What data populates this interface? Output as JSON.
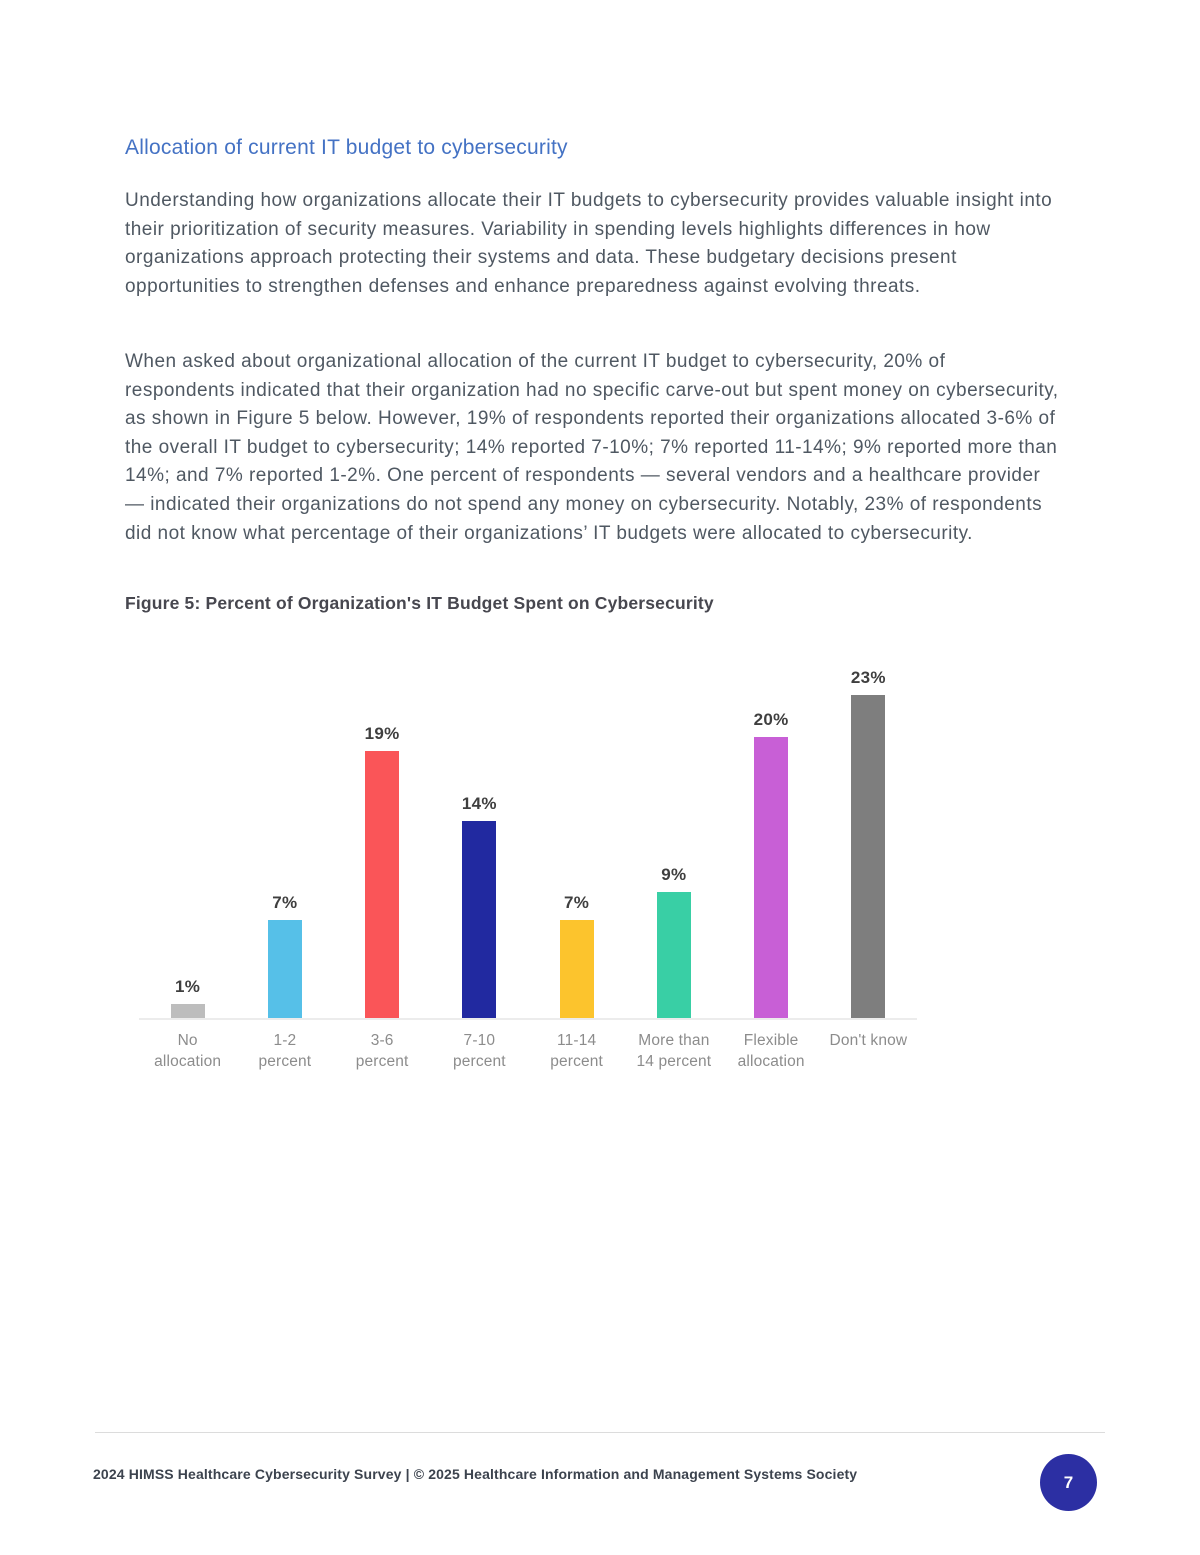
{
  "document": {
    "heading": "Allocation of current IT budget to cybersecurity",
    "paragraphs": [
      "Understanding how organizations allocate their IT budgets to cybersecurity provides valuable insight into their prioritization of security measures. Variability in spending levels highlights differences in how organizations approach protecting their systems and data. These budgetary decisions present opportunities to strengthen defenses and enhance preparedness against evolving threats.",
      "When asked about organizational allocation of the current IT budget to cybersecurity, 20% of respondents indicated that their organization had no specific carve-out but spent money on cybersecurity, as shown in Figure 5 below. However, 19% of respondents reported their organizations allocated 3-6% of the overall IT budget to cybersecurity; 14% reported 7-10%; 7% reported 11-14%; 9% reported more than 14%; and 7% reported 1-2%. One percent of respondents — several vendors and a healthcare provider — indicated their organizations do not spend any money on cybersecurity. Notably, 23% of respondents did not know what percentage of their organizations’ IT budgets were allocated to cybersecurity."
    ],
    "figure_title": "Figure 5: Percent of Organization's IT Budget Spent on Cybersecurity"
  },
  "chart_data": {
    "type": "bar",
    "title": "Figure 5: Percent of Organization's IT Budget Spent on Cybersecurity",
    "categories": [
      "No allocation",
      "1-2 percent",
      "3-6 percent",
      "7-10 percent",
      "11-14 percent",
      "More than 14 percent",
      "Flexible allocation",
      "Don't know"
    ],
    "tick_labels": [
      "No\nallocation",
      "1-2\npercent",
      "3-6\npercent",
      "7-10\npercent",
      "11-14\npercent",
      "More than\n14 percent",
      "Flexible\nallocation",
      "Don't know"
    ],
    "values": [
      1,
      7,
      19,
      14,
      7,
      9,
      20,
      23
    ],
    "value_labels": [
      "1%",
      "7%",
      "19%",
      "14%",
      "7%",
      "9%",
      "20%",
      "23%"
    ],
    "bar_colors": [
      "#bdbdbd",
      "#56c0e8",
      "#fa5558",
      "#2129a0",
      "#fcc42d",
      "#39cfa5",
      "#c85fd6",
      "#7e7e7e"
    ],
    "unit": "%",
    "xlabel": "",
    "ylabel": "",
    "ylim": [
      0,
      25
    ],
    "grid": false,
    "legend": false
  },
  "footer": {
    "left_text": "2024 HIMSS Healthcare Cybersecurity Survey  |  © 2025 Healthcare Information and Management Systems Society",
    "page_number": "7"
  },
  "theme": {
    "heading_blue": "#4472c4",
    "body_text": "#4f5862",
    "figure_title": "#47474f",
    "value_label": "#3f3f3f",
    "tick_label": "#8c8c8c",
    "axis_line": "#ececec",
    "rule": "#dcdcdc",
    "footer_text": "#3c434e",
    "page_circle": "#2c2fa3"
  }
}
